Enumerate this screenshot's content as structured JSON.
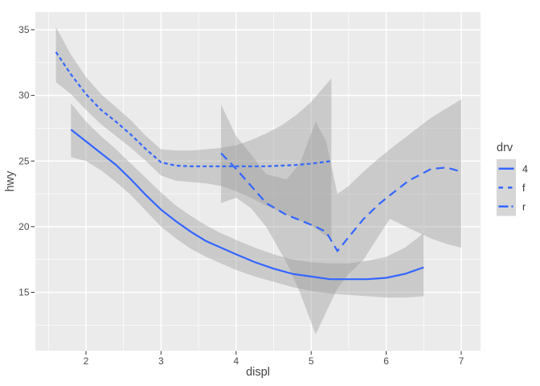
{
  "figure": {
    "background": "#ffffff"
  },
  "chart_data": {
    "type": "line",
    "title": "",
    "xlabel": "displ",
    "ylabel": "hwy",
    "xlim": [
      1.33,
      7.26
    ],
    "ylim": [
      10.55,
      36.35
    ],
    "grid": true,
    "panel_fill": "#ebebeb",
    "grid_color": "#ffffff",
    "line_color": "#3366ff",
    "ribbon_color": "#999999",
    "ribbon_opacity": 0.4,
    "tick_color": "#333333",
    "tick_label_color": "#4d4d4d",
    "axis_title_color": "#444444",
    "legend_title": "drv",
    "legend_position": "right",
    "legend_key_fill": "#d6d6d6",
    "legend_label_color": "#333333",
    "x_axis": {
      "tick_labels": [
        "2",
        "3",
        "4",
        "5",
        "6",
        "7"
      ],
      "tick_values": [
        2,
        3,
        4,
        5,
        6,
        7
      ],
      "minor": [
        1.5,
        2.5,
        3.5,
        4.5,
        5.5,
        6.5
      ]
    },
    "y_axis": {
      "tick_labels": [
        "15",
        "20",
        "25",
        "30",
        "35"
      ],
      "tick_values": [
        15,
        20,
        25,
        30,
        35
      ],
      "minor": [
        12.5,
        17.5,
        22.5,
        27.5,
        32.5
      ]
    },
    "series": [
      {
        "name": "4",
        "dash": "solid",
        "x": [
          1.8,
          2.0,
          2.2,
          2.4,
          2.6,
          2.8,
          3.0,
          3.2,
          3.4,
          3.6,
          3.8,
          4.0,
          4.25,
          4.5,
          4.75,
          5.0,
          5.25,
          5.5,
          5.75,
          6.0,
          6.25,
          6.5
        ],
        "y": [
          27.4,
          26.5,
          25.6,
          24.7,
          23.6,
          22.4,
          21.3,
          20.4,
          19.6,
          18.9,
          18.4,
          17.9,
          17.3,
          16.8,
          16.4,
          16.2,
          16.0,
          16.0,
          16.0,
          16.1,
          16.4,
          16.9
        ],
        "ci_upper": [
          29.4,
          28.0,
          26.9,
          25.9,
          24.8,
          23.7,
          22.6,
          21.6,
          20.8,
          20.1,
          19.5,
          19.0,
          18.4,
          17.9,
          17.5,
          17.3,
          17.2,
          17.2,
          17.4,
          17.7,
          18.4,
          19.5
        ],
        "ci_lower": [
          25.3,
          25.0,
          24.3,
          23.4,
          22.4,
          21.2,
          20.0,
          19.1,
          18.3,
          17.7,
          17.2,
          16.7,
          16.2,
          15.8,
          15.4,
          15.1,
          14.9,
          14.8,
          14.7,
          14.6,
          14.6,
          14.7
        ]
      },
      {
        "name": "f",
        "dash": "dashed",
        "x": [
          1.6,
          1.8,
          2.0,
          2.2,
          2.4,
          2.6,
          2.8,
          3.0,
          3.2,
          3.4,
          3.6,
          3.8,
          4.0,
          4.2,
          4.4,
          4.6,
          4.8,
          5.0,
          5.27
        ],
        "y": [
          33.3,
          31.6,
          30.1,
          28.9,
          28.0,
          27.0,
          25.9,
          24.9,
          24.65,
          24.6,
          24.6,
          24.6,
          24.6,
          24.6,
          24.6,
          24.65,
          24.7,
          24.8,
          25.0
        ],
        "ci_upper": [
          35.2,
          33.1,
          31.4,
          30.1,
          29.1,
          28.1,
          26.9,
          25.9,
          25.8,
          25.8,
          25.9,
          26.0,
          26.2,
          26.6,
          27.1,
          27.7,
          28.5,
          29.5,
          31.3
        ],
        "ci_lower": [
          31.0,
          30.1,
          28.9,
          27.8,
          26.9,
          26.0,
          25.0,
          23.9,
          23.5,
          23.4,
          23.3,
          23.1,
          22.7,
          22.2,
          21.6,
          21.1,
          20.6,
          20.1,
          19.0
        ]
      },
      {
        "name": "r",
        "dash": "longdash",
        "x": [
          3.8,
          4.0,
          4.2,
          4.4,
          4.67,
          4.85,
          5.06,
          5.2,
          5.35,
          5.5,
          5.7,
          5.9,
          6.05,
          6.3,
          6.6,
          6.8,
          7.0
        ],
        "y": [
          25.6,
          24.4,
          23.1,
          21.8,
          20.9,
          20.5,
          20.0,
          19.6,
          18.15,
          19.2,
          20.6,
          21.7,
          22.4,
          23.5,
          24.4,
          24.5,
          24.2
        ],
        "ci_upper": [
          29.3,
          26.9,
          25.5,
          24.0,
          23.6,
          24.8,
          28.0,
          26.5,
          22.5,
          23.1,
          24.2,
          25.2,
          25.9,
          27.0,
          28.3,
          29.0,
          29.7
        ],
        "ci_lower": [
          21.8,
          22.2,
          21.4,
          20.0,
          17.3,
          15.0,
          11.8,
          13.5,
          15.3,
          16.4,
          17.5,
          19.3,
          20.6,
          19.9,
          19.1,
          18.7,
          18.4
        ]
      }
    ]
  }
}
